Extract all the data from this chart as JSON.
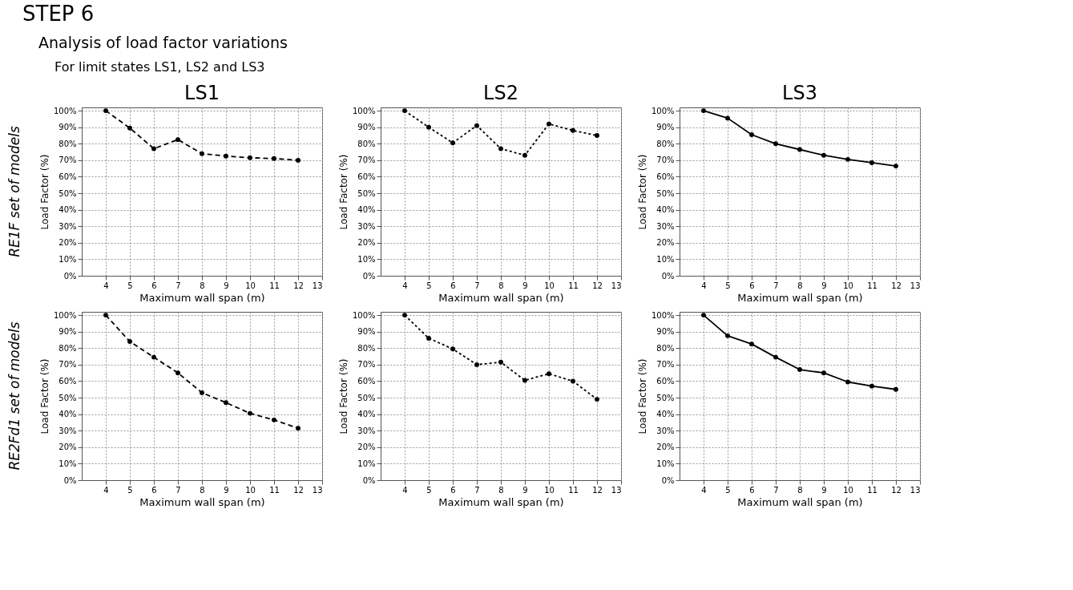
{
  "chart_data": [
    {
      "type": "line",
      "title": "LS1",
      "xlabel": "Maximum wall span (m)",
      "ylabel": "Load Factor (%)",
      "annotations": [
        "STEP 6",
        "Analysis of load factor variations",
        "For limit states LS1, LS2 and LS3",
        "RE1F set of models"
      ],
      "x": [
        4,
        5,
        6,
        7,
        8,
        9,
        10,
        11,
        12
      ],
      "series": [
        {
          "color": "#000000",
          "values": [
            100,
            89.5,
            77,
            82.5,
            74,
            72.5,
            71.5,
            71,
            70
          ]
        }
      ],
      "xlim": [
        3,
        13
      ],
      "xticks": [
        4,
        5,
        6,
        7,
        8,
        9,
        10,
        11,
        12,
        13
      ],
      "ylim": [
        0,
        102
      ],
      "yticks": [
        {
          "value": 0,
          "label": "0%"
        },
        {
          "value": 10,
          "label": "10%"
        },
        {
          "value": 20,
          "label": "20%"
        },
        {
          "value": 30,
          "label": "30%"
        },
        {
          "value": 40,
          "label": "40%"
        },
        {
          "value": 50,
          "label": "50%"
        },
        {
          "value": 60,
          "label": "60%"
        },
        {
          "value": 70,
          "label": "70%"
        },
        {
          "value": 80,
          "label": "80%"
        },
        {
          "value": 90,
          "label": "90%"
        },
        {
          "value": 100,
          "label": "100%"
        }
      ],
      "grid": true,
      "marker": "circle",
      "line_style": "dashed"
    },
    {
      "type": "line",
      "title": "LS2",
      "xlabel": "Maximum wall span (m)",
      "ylabel": "Load Factor (%)",
      "x": [
        4,
        5,
        6,
        7,
        8,
        9,
        10,
        11,
        12
      ],
      "series": [
        {
          "color": "#000000",
          "values": [
            100,
            90,
            80.5,
            91,
            77,
            73,
            92,
            88,
            85
          ]
        }
      ],
      "xlim": [
        3,
        13
      ],
      "xticks": [
        4,
        5,
        6,
        7,
        8,
        9,
        10,
        11,
        12,
        13
      ],
      "ylim": [
        0,
        102
      ],
      "yticks": [
        {
          "value": 0,
          "label": "0%"
        },
        {
          "value": 10,
          "label": "10%"
        },
        {
          "value": 20,
          "label": "20%"
        },
        {
          "value": 30,
          "label": "30%"
        },
        {
          "value": 40,
          "label": "40%"
        },
        {
          "value": 50,
          "label": "50%"
        },
        {
          "value": 60,
          "label": "60%"
        },
        {
          "value": 70,
          "label": "70%"
        },
        {
          "value": 80,
          "label": "80%"
        },
        {
          "value": 90,
          "label": "90%"
        },
        {
          "value": 100,
          "label": "100%"
        }
      ],
      "grid": true,
      "marker": "circle",
      "line_style": "dotted"
    },
    {
      "type": "line",
      "title": "LS3",
      "xlabel": "Maximum wall span (m)",
      "ylabel": "Load Factor (%)",
      "x": [
        4,
        5,
        6,
        7,
        8,
        9,
        10,
        11,
        12
      ],
      "series": [
        {
          "color": "#000000",
          "values": [
            100,
            95.5,
            85.5,
            80,
            76.5,
            73,
            70.5,
            68.5,
            66.5
          ]
        }
      ],
      "xlim": [
        3,
        13
      ],
      "xticks": [
        4,
        5,
        6,
        7,
        8,
        9,
        10,
        11,
        12,
        13
      ],
      "ylim": [
        0,
        102
      ],
      "yticks": [
        {
          "value": 0,
          "label": "0%"
        },
        {
          "value": 10,
          "label": "10%"
        },
        {
          "value": 20,
          "label": "20%"
        },
        {
          "value": 30,
          "label": "30%"
        },
        {
          "value": 40,
          "label": "40%"
        },
        {
          "value": 50,
          "label": "50%"
        },
        {
          "value": 60,
          "label": "60%"
        },
        {
          "value": 70,
          "label": "70%"
        },
        {
          "value": 80,
          "label": "80%"
        },
        {
          "value": 90,
          "label": "90%"
        },
        {
          "value": 100,
          "label": "100%"
        }
      ],
      "grid": true,
      "marker": "circle",
      "line_style": "solid"
    },
    {
      "type": "line",
      "xlabel": "Maximum wall span (m)",
      "ylabel": "Load Factor (%)",
      "annotations": [
        "RE2Fd1 set of models"
      ],
      "x": [
        4,
        5,
        6,
        7,
        8,
        9,
        10,
        11,
        12
      ],
      "series": [
        {
          "color": "#000000",
          "values": [
            100,
            84,
            74.5,
            65,
            53,
            47,
            40.5,
            36.5,
            31.5
          ]
        }
      ],
      "xlim": [
        3,
        13
      ],
      "xticks": [
        4,
        5,
        6,
        7,
        8,
        9,
        10,
        11,
        12,
        13
      ],
      "ylim": [
        0,
        102
      ],
      "yticks": [
        {
          "value": 0,
          "label": "0%"
        },
        {
          "value": 10,
          "label": "10%"
        },
        {
          "value": 20,
          "label": "20%"
        },
        {
          "value": 30,
          "label": "30%"
        },
        {
          "value": 40,
          "label": "40%"
        },
        {
          "value": 50,
          "label": "50%"
        },
        {
          "value": 60,
          "label": "60%"
        },
        {
          "value": 70,
          "label": "70%"
        },
        {
          "value": 80,
          "label": "80%"
        },
        {
          "value": 90,
          "label": "90%"
        },
        {
          "value": 100,
          "label": "100%"
        }
      ],
      "grid": true,
      "marker": "circle",
      "line_style": "dashed"
    },
    {
      "type": "line",
      "xlabel": "Maximum wall span (m)",
      "ylabel": "Load Factor (%)",
      "x": [
        4,
        5,
        6,
        7,
        8,
        9,
        10,
        11,
        12
      ],
      "series": [
        {
          "color": "#000000",
          "values": [
            100,
            86,
            79.5,
            70,
            71.5,
            60.5,
            64.5,
            60,
            49
          ]
        }
      ],
      "xlim": [
        3,
        13
      ],
      "xticks": [
        4,
        5,
        6,
        7,
        8,
        9,
        10,
        11,
        12,
        13
      ],
      "ylim": [
        0,
        102
      ],
      "yticks": [
        {
          "value": 0,
          "label": "0%"
        },
        {
          "value": 10,
          "label": "10%"
        },
        {
          "value": 20,
          "label": "20%"
        },
        {
          "value": 30,
          "label": "30%"
        },
        {
          "value": 40,
          "label": "40%"
        },
        {
          "value": 50,
          "label": "50%"
        },
        {
          "value": 60,
          "label": "60%"
        },
        {
          "value": 70,
          "label": "70%"
        },
        {
          "value": 80,
          "label": "80%"
        },
        {
          "value": 90,
          "label": "90%"
        },
        {
          "value": 100,
          "label": "100%"
        }
      ],
      "grid": true,
      "marker": "circle",
      "line_style": "dotted"
    },
    {
      "type": "line",
      "xlabel": "Maximum wall span (m)",
      "ylabel": "Load Factor (%)",
      "x": [
        4,
        5,
        6,
        7,
        8,
        9,
        10,
        11,
        12
      ],
      "series": [
        {
          "color": "#000000",
          "values": [
            100,
            87.5,
            82.5,
            74.5,
            67,
            65,
            59.5,
            57,
            55
          ]
        }
      ],
      "xlim": [
        3,
        13
      ],
      "xticks": [
        4,
        5,
        6,
        7,
        8,
        9,
        10,
        11,
        12,
        13
      ],
      "ylim": [
        0,
        102
      ],
      "yticks": [
        {
          "value": 0,
          "label": "0%"
        },
        {
          "value": 10,
          "label": "10%"
        },
        {
          "value": 20,
          "label": "20%"
        },
        {
          "value": 30,
          "label": "30%"
        },
        {
          "value": 40,
          "label": "40%"
        },
        {
          "value": 50,
          "label": "50%"
        },
        {
          "value": 60,
          "label": "60%"
        },
        {
          "value": 70,
          "label": "70%"
        },
        {
          "value": 80,
          "label": "80%"
        },
        {
          "value": 90,
          "label": "90%"
        },
        {
          "value": 100,
          "label": "100%"
        }
      ],
      "grid": true,
      "marker": "circle",
      "line_style": "solid"
    }
  ]
}
